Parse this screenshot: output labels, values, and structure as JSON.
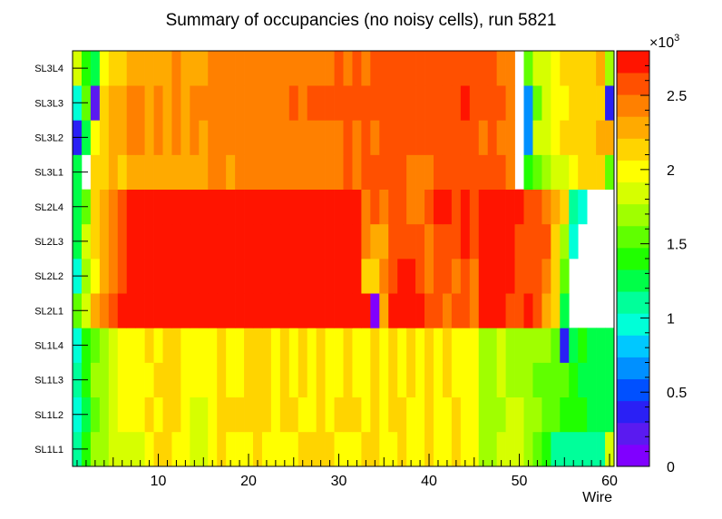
{
  "chart_data": {
    "type": "heatmap",
    "title": "Summary of occupancies (no noisy cells), run 5821",
    "xlabel": "Wire",
    "ylabel": "",
    "xlim": [
      0.5,
      60.5
    ],
    "x_ticks": [
      10,
      20,
      30,
      40,
      50,
      60
    ],
    "categories_y": [
      "SL1L1",
      "SL1L2",
      "SL1L3",
      "SL1L4",
      "SL2L1",
      "SL2L2",
      "SL2L3",
      "SL2L4",
      "SL3L1",
      "SL3L2",
      "SL3L3",
      "SL3L4"
    ],
    "color_scale": {
      "min": 0,
      "max": 2800,
      "multiplier_label": "×10",
      "multiplier_exponent": "3",
      "ticks": [
        0,
        0.5,
        1,
        1.5,
        2,
        2.5
      ],
      "palette": [
        "#8000ff",
        "#5a1af0",
        "#2a20f5",
        "#0050ff",
        "#0090ff",
        "#00c8ff",
        "#00ffd8",
        "#00ff9a",
        "#00ff48",
        "#20ff00",
        "#60ff00",
        "#a0ff00",
        "#d6ff00",
        "#ffff00",
        "#ffd400",
        "#ffaa00",
        "#ff8000",
        "#ff5000",
        "#ff1400"
      ]
    },
    "wire_count": 60,
    "rows": [
      {
        "layer": "SL1L1",
        "values": [
          1150,
          1350,
          1650,
          1700,
          1900,
          1850,
          1900,
          1900,
          2000,
          2100,
          2100,
          2000,
          2000,
          1800,
          1850,
          2000,
          2100,
          2000,
          2000,
          2050,
          2100,
          2000,
          2000,
          2050,
          2000,
          2100,
          2150,
          2100,
          2100,
          2000,
          2050,
          2050,
          2100,
          2100,
          2050,
          2000,
          2100,
          2050,
          2050,
          2100,
          2000,
          2050,
          2100,
          2000,
          1950,
          1700,
          1700,
          1850,
          1800,
          1800,
          1700,
          1600,
          1450,
          1150,
          1150,
          1150,
          1150,
          1100,
          1100,
          1800
        ]
      },
      {
        "layer": "SL1L2",
        "values": [
          1000,
          1250,
          1600,
          1650,
          1850,
          1950,
          1950,
          2050,
          2100,
          2050,
          2100,
          2100,
          2050,
          1900,
          1900,
          2050,
          2200,
          2100,
          2100,
          2100,
          2100,
          2100,
          2050,
          2100,
          2100,
          2050,
          2050,
          2100,
          2050,
          2100,
          2100,
          2100,
          2050,
          2100,
          2050,
          2100,
          2100,
          2050,
          2000,
          2100,
          2050,
          2050,
          2100,
          2050,
          2050,
          1750,
          1700,
          1750,
          1800,
          1800,
          1700,
          1650,
          1500,
          1500,
          1400,
          1350,
          1350,
          1250,
          1250,
          1300
        ]
      },
      {
        "layer": "SL1L3",
        "values": [
          1100,
          1350,
          1650,
          1700,
          1900,
          1950,
          2050,
          2050,
          2050,
          2100,
          2100,
          2100,
          2050,
          1950,
          1950,
          2050,
          2100,
          2050,
          2050,
          2100,
          2100,
          2100,
          2050,
          2100,
          2050,
          2100,
          2050,
          2100,
          2050,
          2050,
          2100,
          2050,
          2050,
          2100,
          2050,
          2100,
          2050,
          2100,
          2050,
          2100,
          2050,
          2100,
          2050,
          2000,
          1950,
          1700,
          1650,
          1800,
          1750,
          1700,
          1700,
          1600,
          1600,
          1550,
          1500,
          1400,
          1300,
          1300,
          1200,
          1250
        ]
      },
      {
        "layer": "SL1L4",
        "values": [
          1000,
          1350,
          1600,
          1650,
          1850,
          1950,
          2050,
          2050,
          2100,
          2050,
          2100,
          2100,
          2050,
          1950,
          1950,
          2050,
          2100,
          2050,
          2050,
          2100,
          2100,
          2100,
          2050,
          2100,
          2050,
          2100,
          2050,
          2100,
          2050,
          2050,
          2100,
          2050,
          2050,
          2100,
          2050,
          2100,
          2050,
          2100,
          2050,
          2100,
          2050,
          2100,
          2050,
          2000,
          1950,
          1700,
          1650,
          1800,
          1750,
          1700,
          1700,
          1650,
          1650,
          1550,
          300,
          1300,
          1450,
          1300,
          1250,
          1200
        ]
      },
      {
        "layer": "SL2L1",
        "values": [
          1600,
          1800,
          2250,
          2400,
          2600,
          2750,
          2750,
          2750,
          2750,
          2750,
          2750,
          2750,
          2750,
          2750,
          2750,
          2750,
          2750,
          2750,
          2750,
          2750,
          2750,
          2750,
          2750,
          2750,
          2750,
          2750,
          2750,
          2700,
          2750,
          2700,
          2750,
          2700,
          2700,
          100,
          2300,
          2750,
          2700,
          2750,
          2750,
          2600,
          2600,
          2500,
          2600,
          2650,
          2450,
          2700,
          2700,
          2700,
          2650,
          2600,
          2700,
          2550,
          2300,
          2100,
          1300,
          0,
          0,
          0,
          0,
          0
        ]
      },
      {
        "layer": "SL2L2",
        "values": [
          900,
          1700,
          2050,
          2300,
          2500,
          2650,
          2750,
          2750,
          2750,
          2750,
          2750,
          2750,
          2750,
          2750,
          2750,
          2750,
          2750,
          2750,
          2750,
          2750,
          2750,
          2750,
          2750,
          2750,
          2750,
          2750,
          2750,
          2750,
          2750,
          2750,
          2750,
          2750,
          2200,
          2200,
          2400,
          2550,
          2750,
          2700,
          2550,
          2500,
          2600,
          2650,
          2500,
          2650,
          2450,
          2700,
          2700,
          2700,
          2700,
          2650,
          2650,
          2550,
          2500,
          2150,
          1500,
          0,
          0,
          0,
          0,
          0
        ]
      },
      {
        "layer": "SL2L3",
        "values": [
          1200,
          1800,
          2100,
          2300,
          2500,
          2650,
          2750,
          2750,
          2750,
          2750,
          2750,
          2750,
          2750,
          2750,
          2750,
          2750,
          2750,
          2750,
          2750,
          2750,
          2750,
          2750,
          2750,
          2750,
          2750,
          2750,
          2750,
          2750,
          2750,
          2750,
          2750,
          2750,
          2400,
          2300,
          2250,
          2600,
          2650,
          2600,
          2550,
          2400,
          2650,
          2650,
          2550,
          2700,
          2600,
          2700,
          2700,
          2700,
          2700,
          2650,
          2650,
          2600,
          2550,
          2200,
          1700,
          1000,
          0,
          0,
          0,
          0
        ]
      },
      {
        "layer": "SL2L4",
        "values": [
          1300,
          1600,
          2100,
          2350,
          2500,
          2650,
          2750,
          2750,
          2750,
          2750,
          2750,
          2750,
          2750,
          2750,
          2750,
          2750,
          2750,
          2750,
          2750,
          2750,
          2750,
          2750,
          2750,
          2750,
          2750,
          2750,
          2750,
          2750,
          2750,
          2750,
          2750,
          2750,
          2500,
          2550,
          2400,
          2650,
          2650,
          2500,
          2450,
          2650,
          2700,
          2750,
          2650,
          2700,
          2650,
          2750,
          2700,
          2750,
          2700,
          2700,
          2650,
          2600,
          2500,
          2350,
          2200,
          1100,
          1000,
          0,
          0,
          0
        ]
      },
      {
        "layer": "SL3L1",
        "values": [
          1200,
          0,
          2100,
          2200,
          2300,
          2200,
          2300,
          2300,
          2350,
          2300,
          2350,
          2300,
          2350,
          2300,
          2350,
          2400,
          2400,
          2350,
          2400,
          2450,
          2400,
          2450,
          2450,
          2400,
          2450,
          2450,
          2500,
          2450,
          2500,
          2500,
          2550,
          2500,
          2550,
          2550,
          2600,
          2550,
          2550,
          2450,
          2500,
          2500,
          2550,
          2600,
          2550,
          2600,
          2600,
          2550,
          2550,
          2550,
          2400,
          0,
          1400,
          1600,
          1700,
          1800,
          1900,
          2050,
          2100,
          2100,
          2200,
          1500
        ]
      },
      {
        "layer": "SL3L2",
        "values": [
          300,
          1300,
          2000,
          2200,
          2300,
          2300,
          2400,
          2400,
          2350,
          2400,
          2350,
          2400,
          2350,
          2400,
          2350,
          2400,
          2450,
          2400,
          2450,
          2400,
          2450,
          2400,
          2450,
          2450,
          2500,
          2450,
          2500,
          2500,
          2500,
          2500,
          2550,
          2500,
          2550,
          2500,
          2550,
          2550,
          2600,
          2550,
          2600,
          2600,
          2550,
          2600,
          2600,
          2550,
          2600,
          2500,
          2550,
          2500,
          2450,
          0,
          600,
          1800,
          1900,
          2000,
          2100,
          2150,
          2200,
          2200,
          2250,
          2300
        ]
      },
      {
        "layer": "SL3L3",
        "values": [
          900,
          1600,
          200,
          2100,
          2300,
          2350,
          2400,
          2400,
          2350,
          2400,
          2350,
          2400,
          2350,
          2400,
          2450,
          2400,
          2450,
          2400,
          2450,
          2450,
          2500,
          2450,
          2500,
          2500,
          2550,
          2500,
          2550,
          2550,
          2550,
          2600,
          2550,
          2600,
          2550,
          2600,
          2600,
          2650,
          2600,
          2650,
          2650,
          2600,
          2650,
          2600,
          2650,
          2800,
          2650,
          2600,
          2650,
          2550,
          2500,
          0,
          700,
          1600,
          1850,
          2000,
          2050,
          2100,
          2150,
          2100,
          2200,
          300
        ]
      },
      {
        "layer": "SL3L4",
        "values": [
          1800,
          1400,
          1200,
          2000,
          2200,
          2200,
          2250,
          2300,
          2350,
          2300,
          2350,
          2400,
          2350,
          2300,
          2350,
          2400,
          2450,
          2400,
          2400,
          2450,
          2400,
          2450,
          2400,
          2450,
          2450,
          2500,
          2450,
          2500,
          2500,
          2550,
          2500,
          2550,
          2500,
          2550,
          2550,
          2600,
          2550,
          2600,
          2550,
          2600,
          2600,
          2550,
          2600,
          2600,
          2550,
          2600,
          2550,
          2500,
          2450,
          0,
          1500,
          1800,
          1900,
          2000,
          2100,
          2150,
          2200,
          2200,
          2300,
          1700
        ]
      }
    ]
  }
}
